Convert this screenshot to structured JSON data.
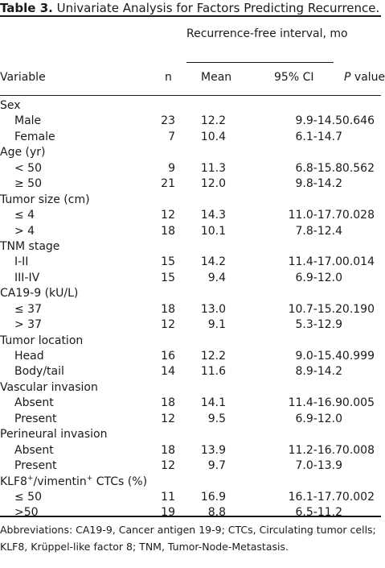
{
  "caption": {
    "label": "Table 3.",
    "title": " Univariate Analysis for Factors Predicting Recurrence."
  },
  "header": {
    "rfi": "Recurrence-free interval, mo",
    "variable": "Variable",
    "n": "n",
    "mean": "Mean",
    "ci": "95% CI",
    "p_italic": "P",
    "p_rest": " value"
  },
  "rows": [
    {
      "var": "Sex",
      "n": "",
      "mean": "",
      "ci": "",
      "p": "",
      "sub": false
    },
    {
      "var": "Male",
      "n": "23",
      "mean": "12.2",
      "ci": "9.9-14.5",
      "p": "0.646",
      "sub": true
    },
    {
      "var": "Female",
      "n": "7",
      "mean": "10.4",
      "ci": "6.1-14.7",
      "p": "",
      "sub": true
    },
    {
      "var": "Age (yr)",
      "n": "",
      "mean": "",
      "ci": "",
      "p": "",
      "sub": false
    },
    {
      "var": "< 50",
      "n": "9",
      "mean": "11.3",
      "ci": "6.8-15.8",
      "p": "0.562",
      "sub": true
    },
    {
      "var": "≥ 50",
      "n": "21",
      "mean": "12.0",
      "ci": "9.8-14.2",
      "p": "",
      "sub": true
    },
    {
      "var": "Tumor size (cm)",
      "n": "",
      "mean": "",
      "ci": "",
      "p": "",
      "sub": false
    },
    {
      "var": "≤ 4",
      "n": "12",
      "mean": "14.3",
      "ci": "11.0-17.7",
      "p": "0.028",
      "sub": true
    },
    {
      "var": "> 4",
      "n": "18",
      "mean": "10.1",
      "ci": "7.8-12.4",
      "p": "",
      "sub": true
    },
    {
      "var": "TNM stage",
      "n": "",
      "mean": "",
      "ci": "",
      "p": "",
      "sub": false
    },
    {
      "var": "I-II",
      "n": "15",
      "mean": "14.2",
      "ci": "11.4-17.0",
      "p": "0.014",
      "sub": true
    },
    {
      "var": "III-IV",
      "n": "15",
      "mean": "9.4",
      "ci": "6.9-12.0",
      "p": "",
      "sub": true
    },
    {
      "var": "CA19-9 (kU/L)",
      "n": "",
      "mean": "",
      "ci": "",
      "p": "",
      "sub": false
    },
    {
      "var": "≤ 37",
      "n": "18",
      "mean": "13.0",
      "ci": "10.7-15.2",
      "p": "0.190",
      "sub": true
    },
    {
      "var": "> 37",
      "n": "12",
      "mean": "9.1",
      "ci": "5.3-12.9",
      "p": "",
      "sub": true
    },
    {
      "var": "Tumor location",
      "n": "",
      "mean": "",
      "ci": "",
      "p": "",
      "sub": false
    },
    {
      "var": "Head",
      "n": "16",
      "mean": "12.2",
      "ci": "9.0-15.4",
      "p": "0.999",
      "sub": true
    },
    {
      "var": "Body/tail",
      "n": "14",
      "mean": "11.6",
      "ci": "8.9-14.2",
      "p": "",
      "sub": true
    },
    {
      "var": "Vascular invasion",
      "n": "",
      "mean": "",
      "ci": "",
      "p": "",
      "sub": false
    },
    {
      "var": "Absent",
      "n": "18",
      "mean": "14.1",
      "ci": "11.4-16.9",
      "p": "0.005",
      "sub": true
    },
    {
      "var": "Present",
      "n": "12",
      "mean": "9.5",
      "ci": "6.9-12.0",
      "p": "",
      "sub": true
    },
    {
      "var": "Perineural invasion",
      "n": "",
      "mean": "",
      "ci": "",
      "p": "",
      "sub": false
    },
    {
      "var": "Absent",
      "n": "18",
      "mean": "13.9",
      "ci": "11.2-16.7",
      "p": "0.008",
      "sub": true
    },
    {
      "var": "Present",
      "n": "12",
      "mean": "9.7",
      "ci": "7.0-13.9",
      "p": "",
      "sub": true
    },
    {
      "var": "KLF8",
      "var_sup1": "+",
      "var_mid": "/vimentin",
      "var_sup2": "+",
      "var_end": " CTCs (%)",
      "n": "",
      "mean": "",
      "ci": "",
      "p": "",
      "sub": false
    },
    {
      "var": "≤ 50",
      "n": "11",
      "mean": "16.9",
      "ci": "16.1-17.7",
      "p": "0.002",
      "sub": true
    },
    {
      "var": ">50",
      "n": "19",
      "mean": "8.8",
      "ci": "6.5-11.2",
      "p": "",
      "sub": true
    }
  ],
  "footnote": "Abbreviations: CA19-9, Cancer antigen 19-9; CTCs, Circulating tumor cells; KLF8, Krüppel-like factor 8; TNM, Tumor-Node-Metastasis."
}
